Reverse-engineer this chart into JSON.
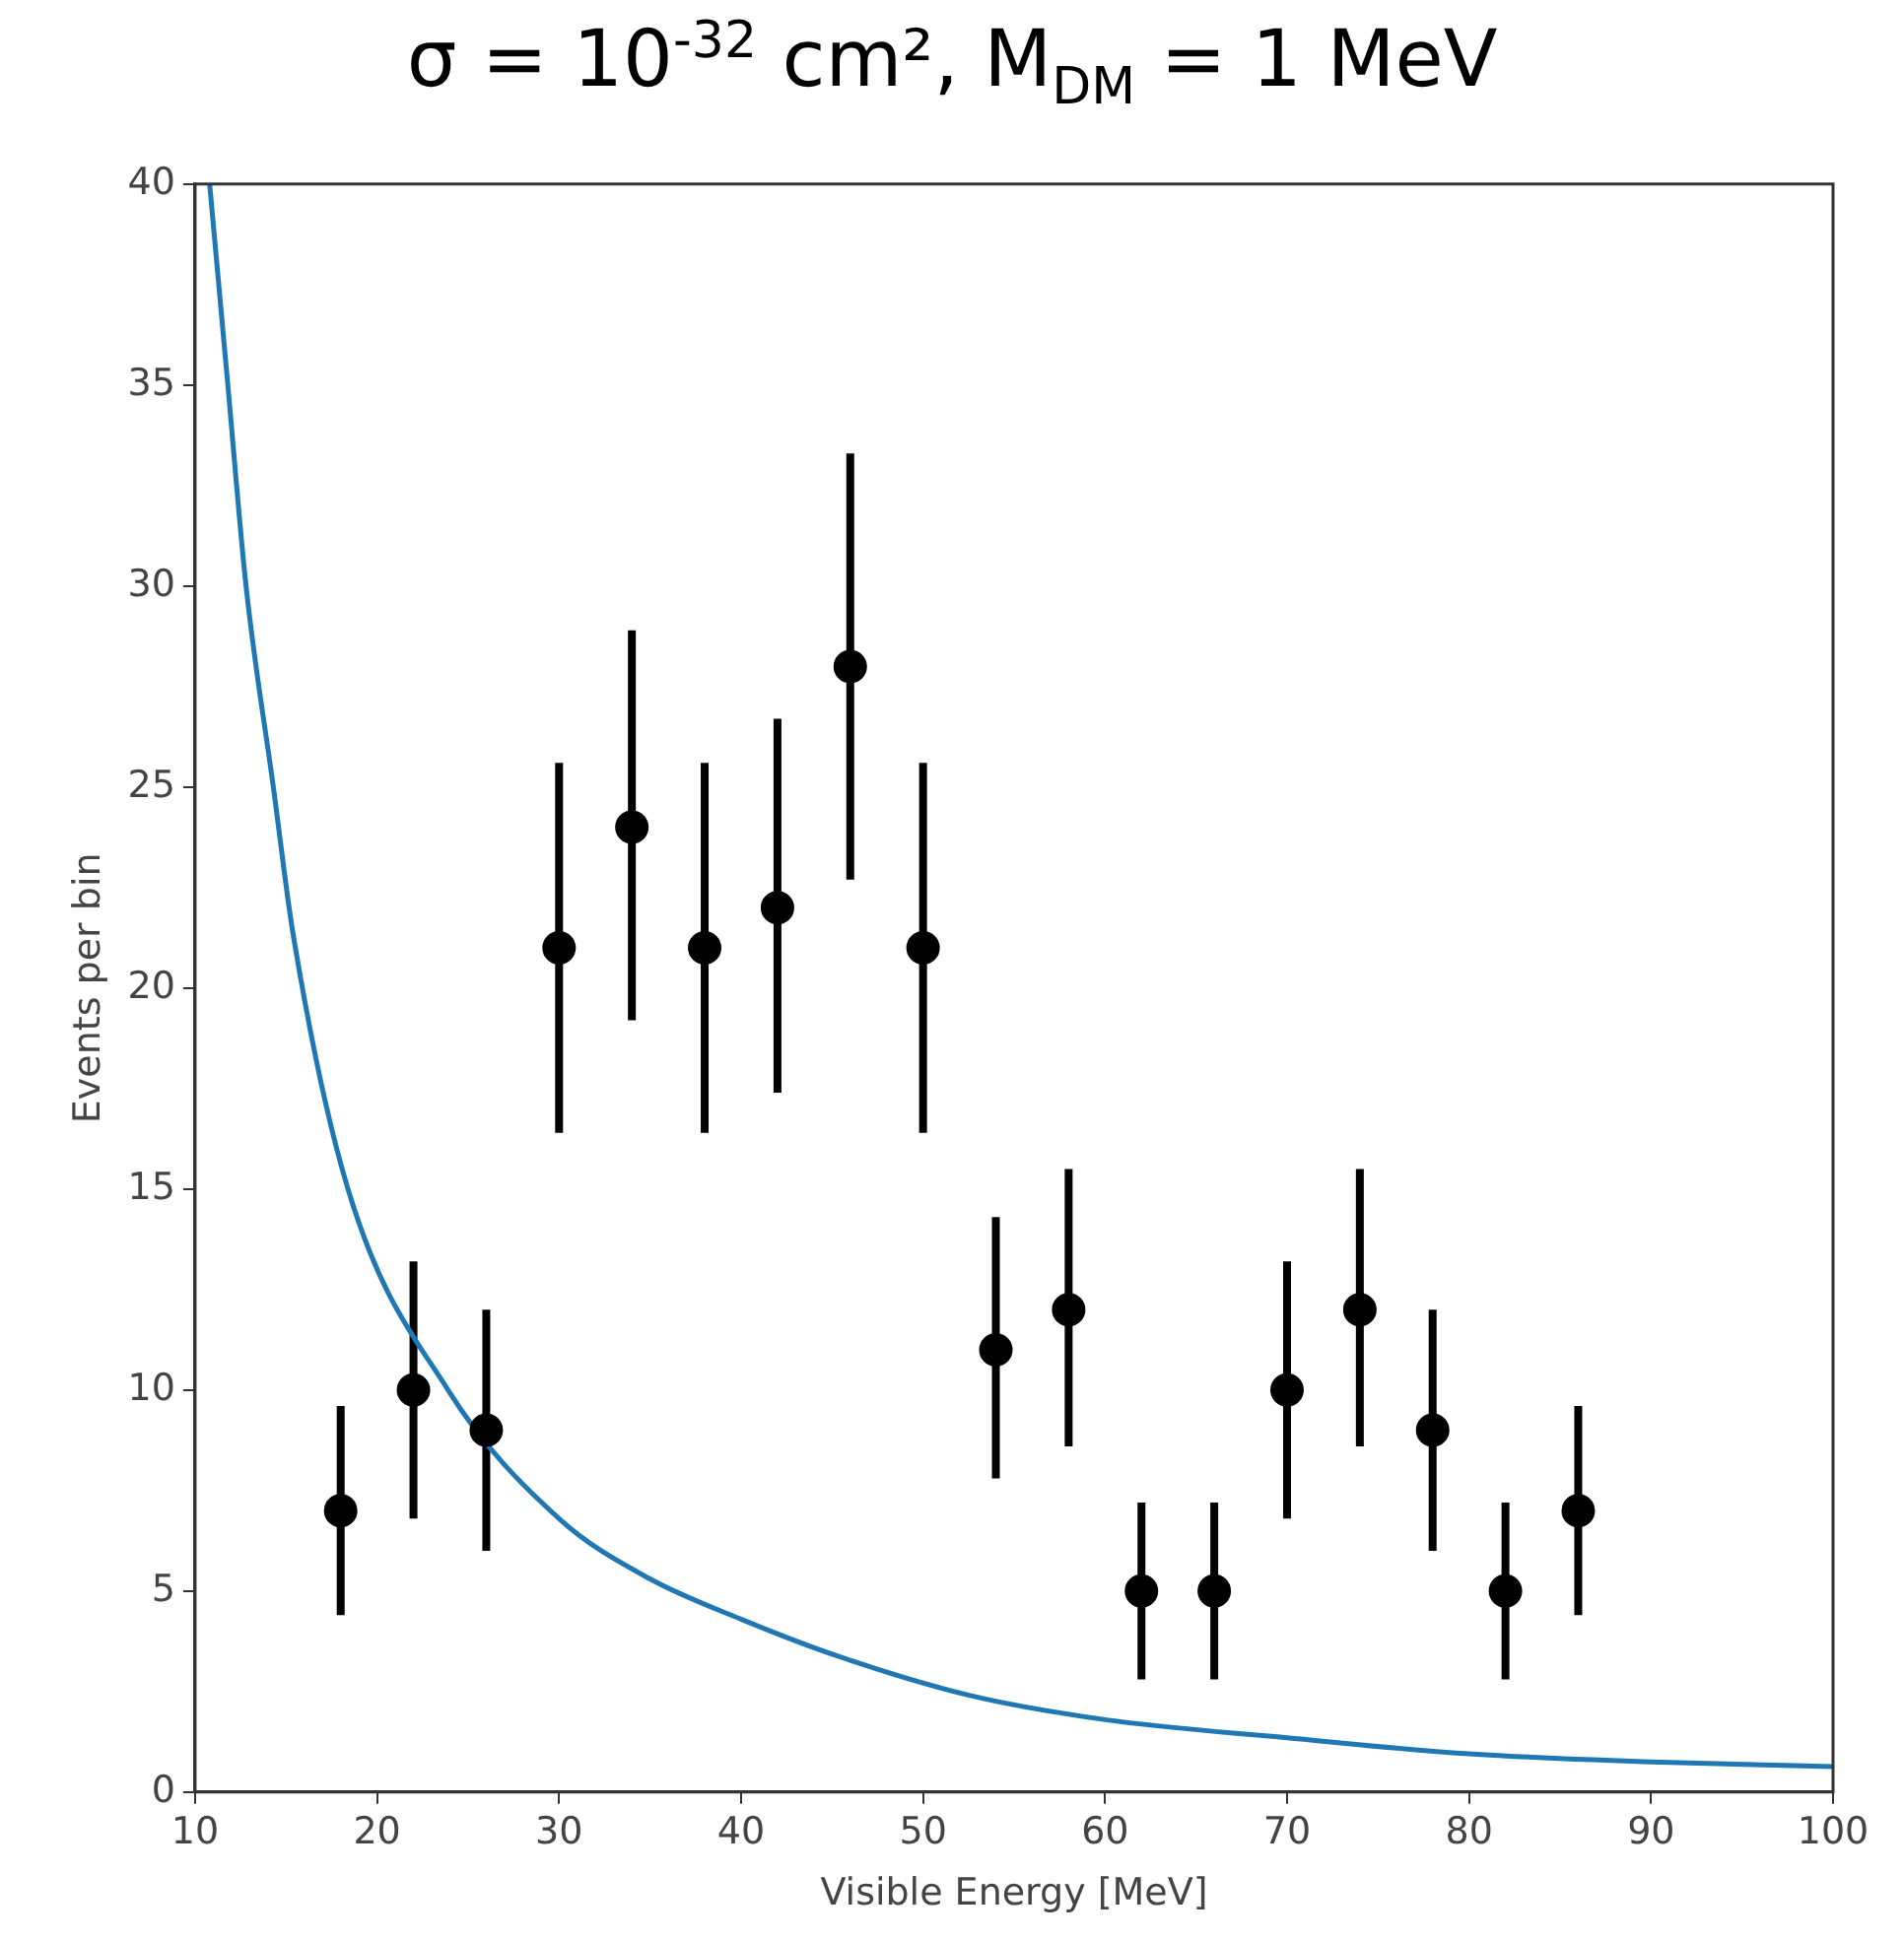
{
  "chart_data": {
    "type": "scatter",
    "title": "σ = 10$^{-32}$ cm², M$_{DM}$ = 1 MeV",
    "xlabel": "Visible Energy [MeV]",
    "ylabel": "Events per bin",
    "xlim": [
      10,
      100
    ],
    "xticks": [
      10,
      20,
      30,
      40,
      50,
      60,
      70,
      80,
      90,
      100
    ],
    "ylim": [
      0,
      40
    ],
    "yticks": [
      0,
      5,
      10,
      15,
      20,
      25,
      30,
      35,
      40
    ],
    "series": [
      {
        "color": "#000000",
        "marker": "circle",
        "x": [
          18,
          22,
          26,
          30,
          34,
          38,
          42,
          46,
          50,
          54,
          58,
          62,
          66,
          70,
          74,
          78,
          82,
          86
        ],
        "values": [
          7,
          10,
          9,
          21,
          24,
          21,
          22,
          28,
          21,
          11,
          12,
          5,
          5,
          10,
          12,
          9,
          5,
          7
        ],
        "errors": [
          [
            4.4,
            9.6
          ],
          [
            6.8,
            13.2
          ],
          [
            6.0,
            12.0
          ],
          [
            16.4,
            25.6
          ],
          [
            19.2,
            28.9
          ],
          [
            16.4,
            25.6
          ],
          [
            17.4,
            26.7
          ],
          [
            22.7,
            33.3
          ],
          [
            16.4,
            25.6
          ],
          [
            7.8,
            14.3
          ],
          [
            8.6,
            15.5
          ],
          [
            2.8,
            7.2
          ],
          [
            2.8,
            7.2
          ],
          [
            6.8,
            13.2
          ],
          [
            8.6,
            15.5
          ],
          [
            6.0,
            12.0
          ],
          [
            2.8,
            7.2
          ],
          [
            4.4,
            9.6
          ]
        ]
      },
      {
        "type": "line",
        "color": "#1f77b4",
        "marker": "none",
        "line_style": "solid",
        "x": [
          10.8,
          11.8,
          12.8,
          14.3,
          15.4,
          18.4,
          23.9,
          30,
          35,
          40,
          45.2,
          52.6,
          60,
          70,
          80,
          90,
          100
        ],
        "values": [
          40,
          35,
          30,
          25,
          21.3,
          15,
          10,
          6.8,
          5.3,
          4.3,
          3.4,
          2.4,
          1.8,
          1.35,
          0.95,
          0.75,
          0.63
        ]
      }
    ]
  }
}
